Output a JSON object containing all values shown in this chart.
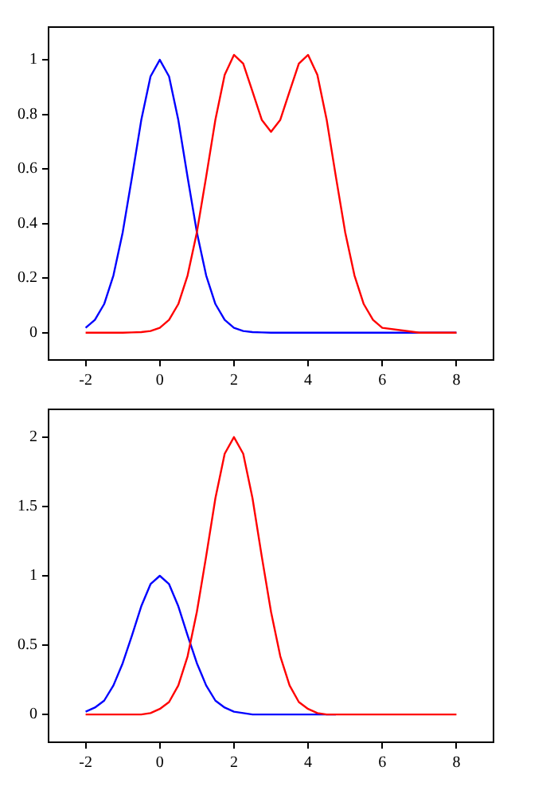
{
  "chart_data": [
    {
      "type": "line",
      "x": [
        -2,
        -1.75,
        -1.5,
        -1.25,
        -1,
        -0.75,
        -0.5,
        -0.25,
        0,
        0.25,
        0.5,
        0.75,
        1,
        1.25,
        1.5,
        1.75,
        2,
        2.25,
        2.5,
        2.75,
        3,
        3.25,
        3.5,
        3.75,
        4,
        4.25,
        4.5,
        4.75,
        5,
        5.25,
        5.5,
        5.75,
        6,
        7,
        8
      ],
      "series": [
        {
          "color": "#0000ff",
          "values": [
            0.018,
            0.047,
            0.105,
            0.21,
            0.368,
            0.57,
            0.779,
            0.939,
            1,
            0.939,
            0.779,
            0.57,
            0.368,
            0.21,
            0.105,
            0.047,
            0.018,
            0.006,
            0.002,
            0.001,
            0,
            0,
            0,
            0,
            0,
            0,
            0,
            0,
            0,
            0,
            0,
            0,
            0,
            0,
            0
          ]
        },
        {
          "color": "#ff0000",
          "values": [
            0,
            0,
            0,
            0,
            0,
            0.001,
            0.002,
            0.006,
            0.018,
            0.047,
            0.105,
            0.21,
            0.368,
            0.571,
            0.781,
            0.945,
            1.018,
            0.986,
            0.884,
            0.78,
            0.736,
            0.78,
            0.884,
            0.986,
            1.018,
            0.945,
            0.781,
            0.571,
            0.368,
            0.21,
            0.105,
            0.047,
            0.018,
            0,
            0
          ]
        }
      ],
      "xlim": [
        -3,
        9
      ],
      "xticks": [
        -2,
        0,
        2,
        4,
        6,
        8
      ],
      "ylim": [
        -0.1,
        1.12
      ],
      "yticks": [
        0,
        0.2,
        0.4,
        0.6,
        0.8,
        1
      ],
      "grid": false,
      "legend": false,
      "marker": "none",
      "line_style": "solid"
    },
    {
      "type": "line",
      "x": [
        -2,
        -1.75,
        -1.5,
        -1.25,
        -1,
        -0.75,
        -0.5,
        -0.25,
        0,
        0.25,
        0.5,
        0.75,
        1,
        1.25,
        1.5,
        1.75,
        2,
        2.25,
        2.5,
        2.75,
        3,
        3.25,
        3.5,
        3.75,
        4,
        4.25,
        4.5,
        4.75,
        5,
        5.25,
        5.5,
        5.75,
        6,
        7,
        8
      ],
      "series": [
        {
          "color": "#0000ff",
          "values": [
            0.02,
            0.05,
            0.1,
            0.21,
            0.37,
            0.57,
            0.78,
            0.94,
            1,
            0.94,
            0.78,
            0.57,
            0.37,
            0.21,
            0.1,
            0.05,
            0.02,
            0.01,
            0,
            0,
            0,
            0,
            0,
            0,
            0,
            0,
            0,
            0,
            null,
            null,
            null,
            null,
            null,
            null,
            null
          ]
        },
        {
          "color": "#ff0000",
          "values": [
            0,
            0,
            0,
            0,
            0,
            0,
            0,
            0.01,
            0.04,
            0.09,
            0.21,
            0.42,
            0.74,
            1.14,
            1.56,
            1.88,
            2,
            1.88,
            1.56,
            1.14,
            0.74,
            0.42,
            0.21,
            0.09,
            0.04,
            0.01,
            0,
            0,
            0,
            0,
            0,
            0,
            0,
            0,
            0
          ]
        }
      ],
      "xlim": [
        -3,
        9
      ],
      "xticks": [
        -2,
        0,
        2,
        4,
        6,
        8
      ],
      "ylim": [
        -0.2,
        2.2
      ],
      "yticks": [
        0,
        0.5,
        1,
        1.5,
        2
      ],
      "grid": false,
      "legend": false,
      "marker": "none",
      "line_style": "solid"
    }
  ]
}
